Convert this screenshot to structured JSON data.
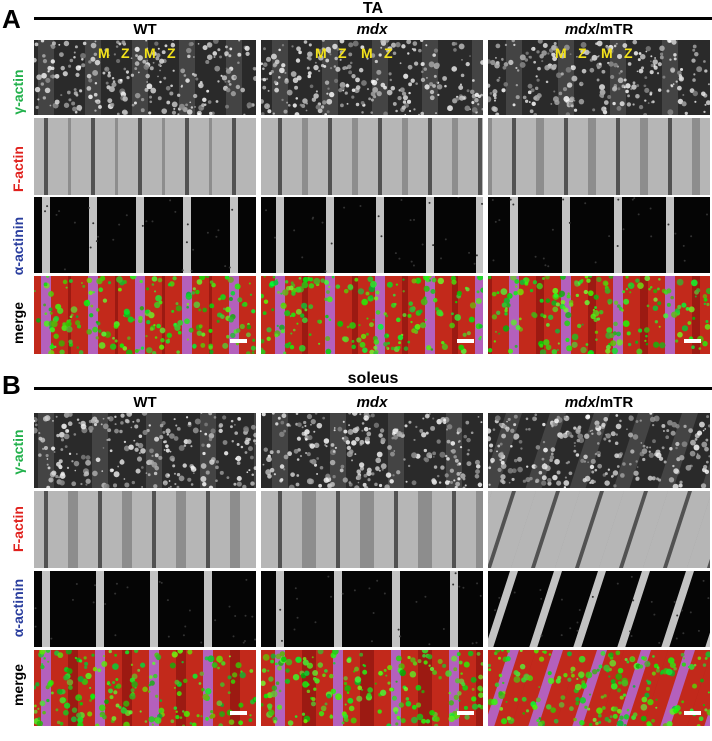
{
  "panelA": {
    "letter": "A",
    "title": "TA",
    "columns": [
      {
        "label": "WT",
        "italic": ""
      },
      {
        "label": "",
        "italic": "mdx"
      },
      {
        "label": "/mTR",
        "italic": "mdx"
      }
    ],
    "rows": [
      {
        "label": "γ-actin",
        "color": "#22b14c"
      },
      {
        "label": "F-actin",
        "color": "#e0211d"
      },
      {
        "label": "α-actinin",
        "color": "#2a3e9e"
      },
      {
        "label": "merge",
        "color": "#000000"
      }
    ],
    "mz_labels": [
      "M",
      "Z",
      "M",
      "Z"
    ]
  },
  "panelB": {
    "letter": "B",
    "title": "soleus",
    "columns": [
      {
        "label": "WT",
        "italic": ""
      },
      {
        "label": "",
        "italic": "mdx"
      },
      {
        "label": "/mTR",
        "italic": "mdx"
      }
    ],
    "rows": [
      {
        "label": "γ-actin",
        "color": "#22b14c"
      },
      {
        "label": "F-actin",
        "color": "#e0211d"
      },
      {
        "label": "α-actinin",
        "color": "#2a3e9e"
      },
      {
        "label": "merge",
        "color": "#000000"
      }
    ]
  }
}
